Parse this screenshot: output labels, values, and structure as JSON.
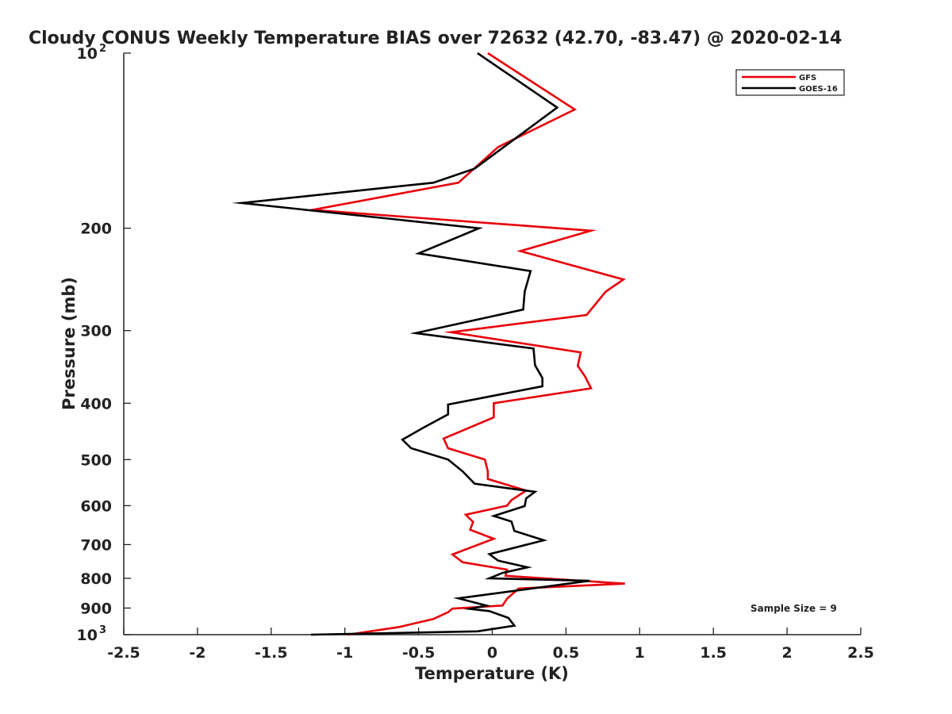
{
  "chart_data": {
    "type": "line",
    "title": "Cloudy CONUS Weekly Temperature BIAS over 72632 (42.70, -83.47) @ 2020-02-14",
    "xlabel": "Temperature (K)",
    "ylabel": "Pressure (mb)",
    "xlim": [
      -2.5,
      2.5
    ],
    "ylim": [
      100,
      1000
    ],
    "yscale": "log",
    "y_inverted": true,
    "grid": false,
    "legend_position": "top-right",
    "xticks": [
      {
        "value": -2.5,
        "label": "-2.5"
      },
      {
        "value": -2,
        "label": "-2"
      },
      {
        "value": -1.5,
        "label": "-1.5"
      },
      {
        "value": -1,
        "label": "-1"
      },
      {
        "value": -0.5,
        "label": "-0.5"
      },
      {
        "value": 0,
        "label": "0"
      },
      {
        "value": 0.5,
        "label": "0.5"
      },
      {
        "value": 1,
        "label": "1"
      },
      {
        "value": 1.5,
        "label": "1.5"
      },
      {
        "value": 2,
        "label": "2"
      },
      {
        "value": 2.5,
        "label": "2.5"
      }
    ],
    "yticks": [
      {
        "value": 200,
        "label": "200"
      },
      {
        "value": 300,
        "label": "300"
      },
      {
        "value": 400,
        "label": "400"
      },
      {
        "value": 500,
        "label": "500"
      },
      {
        "value": 600,
        "label": "600"
      },
      {
        "value": 700,
        "label": "700"
      },
      {
        "value": 800,
        "label": "800"
      },
      {
        "value": 900,
        "label": "900"
      }
    ],
    "yticks_power": [
      {
        "value": 100,
        "base": "10",
        "exp": "2"
      },
      {
        "value": 1000,
        "base": "10",
        "exp": "3"
      }
    ],
    "series": [
      {
        "name": "GFS",
        "color": "#e8000b",
        "points": [
          [
            -0.03,
            100
          ],
          [
            0.56,
            125
          ],
          [
            0.04,
            145
          ],
          [
            -0.23,
            167
          ],
          [
            -1.22,
            186
          ],
          [
            0.67,
            202
          ],
          [
            0.19,
            219
          ],
          [
            0.89,
            245
          ],
          [
            0.77,
            257
          ],
          [
            0.64,
            282
          ],
          [
            -0.28,
            302
          ],
          [
            0.6,
            327
          ],
          [
            0.58,
            345
          ],
          [
            0.63,
            360
          ],
          [
            0.67,
            377
          ],
          [
            0.01,
            400
          ],
          [
            0.01,
            423
          ],
          [
            -0.33,
            460
          ],
          [
            -0.3,
            478
          ],
          [
            -0.05,
            500
          ],
          [
            -0.03,
            524
          ],
          [
            -0.03,
            540
          ],
          [
            0.23,
            565
          ],
          [
            0.13,
            587
          ],
          [
            0.1,
            600
          ],
          [
            -0.18,
            622
          ],
          [
            -0.13,
            640
          ],
          [
            -0.15,
            660
          ],
          [
            0.01,
            684
          ],
          [
            -0.27,
            728
          ],
          [
            -0.2,
            751
          ],
          [
            0.1,
            773
          ],
          [
            0.09,
            792
          ],
          [
            0.9,
            817
          ],
          [
            0.18,
            833
          ],
          [
            0.1,
            867
          ],
          [
            0.07,
            891
          ],
          [
            -0.27,
            902
          ],
          [
            -0.3,
            915
          ],
          [
            -0.4,
            940
          ],
          [
            -0.63,
            970
          ],
          [
            -0.98,
            1000
          ]
        ]
      },
      {
        "name": "GOES-16",
        "color": "#000000",
        "points": [
          [
            -0.1,
            100
          ],
          [
            0.44,
            124
          ],
          [
            -0.12,
            158
          ],
          [
            -0.4,
            167
          ],
          [
            -1.7,
            181
          ],
          [
            -0.09,
            200
          ],
          [
            -0.5,
            221
          ],
          [
            0.26,
            237
          ],
          [
            0.22,
            257
          ],
          [
            0.21,
            276
          ],
          [
            -0.52,
            303
          ],
          [
            0.28,
            322
          ],
          [
            0.29,
            344
          ],
          [
            0.34,
            362
          ],
          [
            0.34,
            374
          ],
          [
            -0.3,
            402
          ],
          [
            -0.3,
            418
          ],
          [
            -0.47,
            441
          ],
          [
            -0.61,
            462
          ],
          [
            -0.55,
            478
          ],
          [
            -0.3,
            500
          ],
          [
            -0.2,
            524
          ],
          [
            -0.12,
            550
          ],
          [
            0.29,
            568
          ],
          [
            0.23,
            583
          ],
          [
            0.22,
            601
          ],
          [
            0.01,
            625
          ],
          [
            0.13,
            639
          ],
          [
            0.15,
            663
          ],
          [
            0.35,
            688
          ],
          [
            -0.02,
            727
          ],
          [
            0.04,
            746
          ],
          [
            0.24,
            766
          ],
          [
            0.07,
            783
          ],
          [
            -0.02,
            800
          ],
          [
            0.66,
            808
          ],
          [
            -0.23,
            866
          ],
          [
            -0.04,
            891
          ],
          [
            -0.15,
            903
          ],
          [
            -0.02,
            911
          ],
          [
            0.11,
            936
          ],
          [
            0.15,
            965
          ],
          [
            -0.1,
            987
          ],
          [
            -1.23,
            1000
          ]
        ]
      }
    ],
    "annotations": [
      {
        "text": "Sample Size = 9"
      }
    ]
  }
}
